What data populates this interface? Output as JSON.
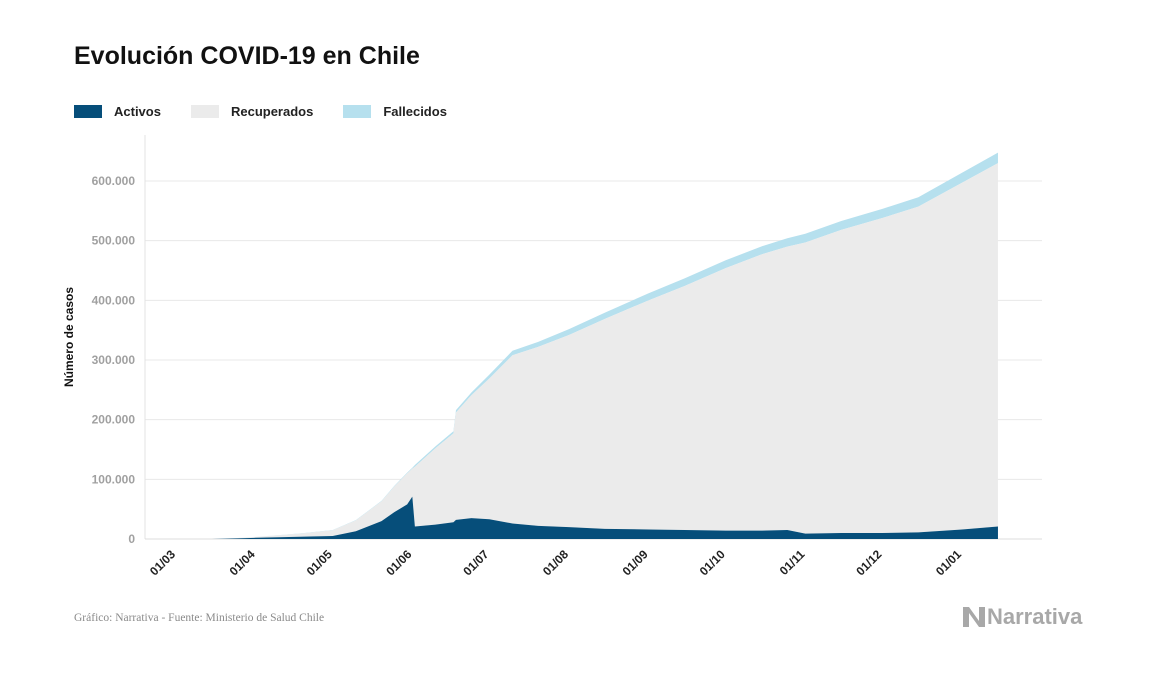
{
  "title": "Evolución COVID-19 en Chile",
  "source": "Gráfico: Narrativa - Fuente: Ministerio de Salud Chile",
  "brand": "Narrativa",
  "brand_icon": "narrativa-logo-icon",
  "colors": {
    "activos": "#064e7a",
    "recuperados": "#ebebeb",
    "fallecidos": "#b6e0ee",
    "grid": "#e8e8e8"
  },
  "legend": [
    {
      "label": "Activos",
      "color": "#064e7a"
    },
    {
      "label": "Recuperados",
      "color": "#ebebeb"
    },
    {
      "label": "Fallecidos",
      "color": "#b6e0ee"
    }
  ],
  "chart_data": {
    "type": "area",
    "stacked": true,
    "ylabel": "Número de casos",
    "ylim": [
      0,
      650000
    ],
    "grid": true,
    "legend_position": "top-left",
    "y_ticks": [
      0,
      100000,
      200000,
      300000,
      400000,
      500000,
      600000
    ],
    "y_tick_labels": [
      "0",
      "100.000",
      "200.000",
      "300.000",
      "400.000",
      "500.000",
      "600.000"
    ],
    "x_ticks": [
      "2020-03-01",
      "2020-04-01",
      "2020-05-01",
      "2020-06-01",
      "2020-07-01",
      "2020-08-01",
      "2020-09-01",
      "2020-10-01",
      "2020-11-01",
      "2020-12-01",
      "2021-01-01"
    ],
    "x_tick_labels": [
      "01/03",
      "01/04",
      "01/05",
      "01/06",
      "01/07",
      "01/08",
      "01/09",
      "01/10",
      "01/11",
      "01/12",
      "01/01"
    ],
    "x": [
      "2020-03-03",
      "2020-03-15",
      "2020-03-25",
      "2020-04-01",
      "2020-04-10",
      "2020-04-20",
      "2020-05-01",
      "2020-05-10",
      "2020-05-20",
      "2020-05-25",
      "2020-05-30",
      "2020-06-01",
      "2020-06-02",
      "2020-06-10",
      "2020-06-17",
      "2020-06-18",
      "2020-06-24",
      "2020-07-01",
      "2020-07-10",
      "2020-07-20",
      "2020-08-01",
      "2020-08-15",
      "2020-09-01",
      "2020-09-15",
      "2020-10-01",
      "2020-10-15",
      "2020-10-25",
      "2020-11-01",
      "2020-11-15",
      "2020-12-01",
      "2020-12-15",
      "2021-01-01",
      "2021-01-15"
    ],
    "series": [
      {
        "name": "Activos",
        "values": [
          0,
          100,
          1000,
          2000,
          3000,
          4000,
          5000,
          13000,
          30000,
          45000,
          58000,
          71000,
          21000,
          24000,
          28000,
          32000,
          35000,
          33000,
          26000,
          22000,
          20000,
          17000,
          16000,
          15000,
          14000,
          14000,
          15000,
          9000,
          10000,
          10000,
          11000,
          16000,
          21000
        ]
      },
      {
        "name": "Recuperados",
        "values": [
          0,
          0,
          700,
          1500,
          3300,
          5700,
          9700,
          18000,
          33000,
          43000,
          52000,
          47000,
          100000,
          128000,
          149000,
          180000,
          206000,
          236000,
          282000,
          300000,
          322000,
          352000,
          384000,
          409000,
          440000,
          463000,
          475000,
          488000,
          508000,
          528000,
          546000,
          581000,
          609000
        ]
      },
      {
        "name": "Fallecidos",
        "values": [
          0,
          0,
          10,
          80,
          200,
          300,
          400,
          550,
          800,
          1050,
          1200,
          1400,
          3000,
          3200,
          3600,
          4000,
          4500,
          6500,
          7400,
          8400,
          9700,
          10500,
          11900,
          12700,
          13100,
          13500,
          14000,
          14500,
          14900,
          15300,
          15800,
          16900,
          17500
        ]
      }
    ]
  }
}
